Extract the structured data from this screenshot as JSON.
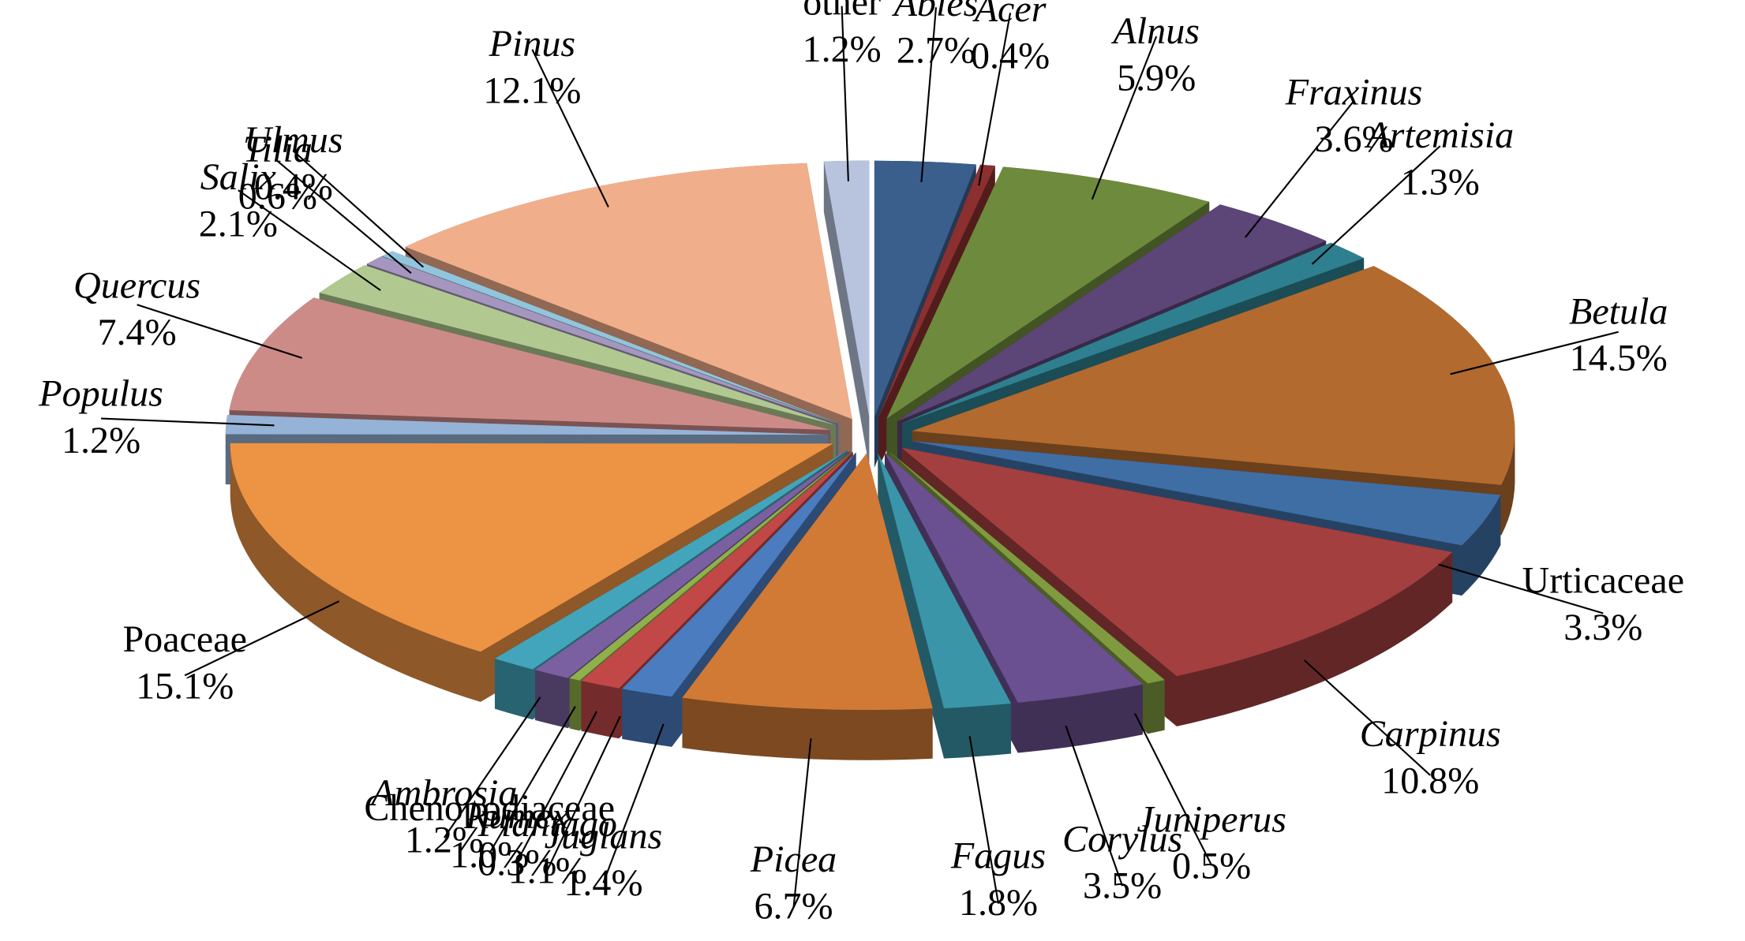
{
  "chart_data": {
    "type": "pie",
    "categories": [
      "Abies",
      "Acer",
      "Alnus",
      "Fraxinus",
      "Artemisia",
      "Betula",
      "Urticaceae",
      "Carpinus",
      "Juniperus",
      "Corylus",
      "Fagus",
      "Picea",
      "Juglans",
      "Plantago",
      "Rumex",
      "Chenopodiaceae",
      "Ambrosia",
      "Poaceae",
      "Populus",
      "Quercus",
      "Salix",
      "Tilia",
      "Ulmus",
      "Pinus",
      "other"
    ],
    "values": [
      2.7,
      0.4,
      5.9,
      3.6,
      1.3,
      14.5,
      3.3,
      10.8,
      0.5,
      3.5,
      1.8,
      6.7,
      1.4,
      1.1,
      0.3,
      1.0,
      1.2,
      15.1,
      1.2,
      7.4,
      2.1,
      0.6,
      0.4,
      12.1,
      1.2
    ],
    "value_labels": [
      "2.7%",
      "0.4%",
      "5.9%",
      "3.6%",
      "1.3%",
      "14.5%",
      "3.3%",
      "10.8%",
      "0.5%",
      "3.5%",
      "1.8%",
      "6.7%",
      "1.4%",
      "1.1%",
      "0.3%",
      "1.0%",
      "1.2%",
      "15.1%",
      "1.2%",
      "7.4%",
      "2.1%",
      "0.6%",
      "0.4%",
      "12.1%",
      "1.2%"
    ],
    "colors": [
      "#3a5f8c",
      "#8b2f2f",
      "#6e8a3c",
      "#5c4577",
      "#2e7f8f",
      "#b36a2e",
      "#3f6ea5",
      "#a33f3f",
      "#7f9a3f",
      "#6a5090",
      "#3a95a8",
      "#d17a35",
      "#4a7cbf",
      "#c24848",
      "#8fb04a",
      "#7a60a0",
      "#42a5bc",
      "#ed9344",
      "#95b3d7",
      "#cd8b88",
      "#b1c990",
      "#a496be",
      "#92c5dd",
      "#f0ae8b",
      "#b8c4de"
    ]
  }
}
